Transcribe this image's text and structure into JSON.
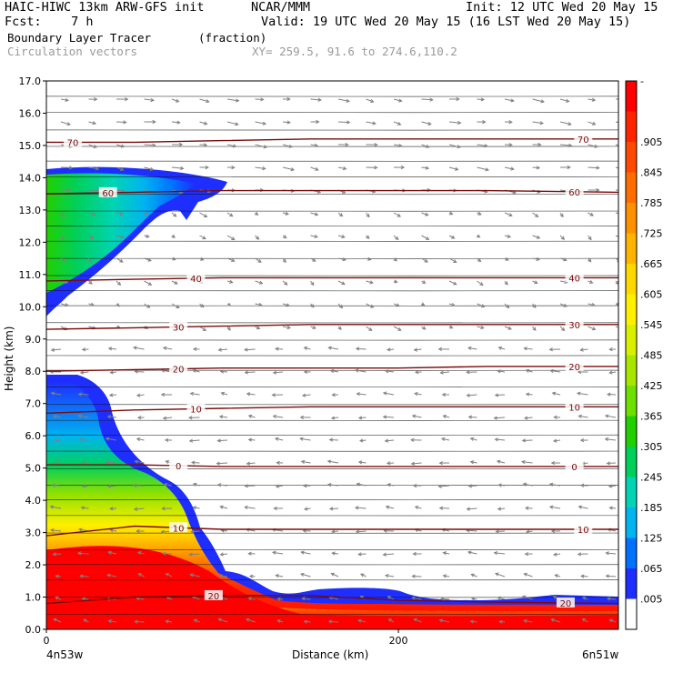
{
  "header": {
    "line1_left": "HAIC-HIWC 13km ARW-GFS init",
    "line1_mid": "NCAR/MMM",
    "line1_right": "Init: 12 UTC Wed 20 May 15",
    "line2_left": "Fcst:    7 h",
    "line2_right": "Valid: 19 UTC Wed 20 May 15 (16 LST Wed 20 May 15)",
    "line3_left": "Boundary Layer Tracer",
    "line3_mid": "(fraction)",
    "line4_left": "Circulation vectors",
    "line4_mid": "XY= 259.5, 91.6 to 274.6,110.2"
  },
  "colors": {
    "contour": "#7a0a0a",
    "vector": "#808080",
    "frame": "#000000"
  },
  "chart_data": {
    "type": "heatmap",
    "title": "Boundary Layer Tracer",
    "units": "(fraction)",
    "xlabel": "Distance (km)",
    "ylabel": "Height (km)",
    "xlim": [
      0,
      325
    ],
    "ylim": [
      0,
      17
    ],
    "x_ticks": [
      "0",
      "200"
    ],
    "x_ticks_values": [
      0,
      200
    ],
    "x_end_labels": {
      "left": "4n53w",
      "right": "6n51w"
    },
    "y_ticks": [
      "0.0",
      "1.0",
      "2.0",
      "3.0",
      "4.0",
      "5.0",
      "6.0",
      "7.0",
      "8.0",
      "9.0",
      "10.0",
      "11.0",
      "12.0",
      "13.0",
      "14.0",
      "15.0",
      "16.0",
      "17.0"
    ],
    "colorbar_labels": [
      "-",
      ".905",
      ".845",
      ".785",
      ".725",
      ".665",
      ".605",
      ".545",
      ".485",
      ".425",
      ".365",
      ".305",
      ".245",
      ".185",
      ".125",
      ".065",
      ".005"
    ],
    "colorbar_colors": [
      "#ff0000",
      "#ff2400",
      "#ff4800",
      "#ff6c00",
      "#ff9000",
      "#ffb400",
      "#ffd800",
      "#fff000",
      "#d8f000",
      "#a8e600",
      "#6ee000",
      "#22d000",
      "#00d05a",
      "#00d4b4",
      "#00b4f0",
      "#0070ff",
      "#1e2eff"
    ],
    "contours": [
      {
        "level": "70",
        "heights": [
          15.1,
          15.1,
          15.15,
          15.2,
          15.2,
          15.2,
          15.2
        ],
        "label_at": [
          15,
          305
        ]
      },
      {
        "level": "60",
        "heights": [
          13.5,
          13.55,
          13.6,
          13.6,
          13.6,
          13.6,
          13.55
        ],
        "label_at": [
          35,
          300
        ]
      },
      {
        "level": "40",
        "heights": [
          10.8,
          10.85,
          10.9,
          10.9,
          10.9,
          10.9,
          10.9
        ],
        "label_at": [
          85,
          300
        ]
      },
      {
        "level": "30",
        "heights": [
          9.3,
          9.35,
          9.4,
          9.45,
          9.45,
          9.45,
          9.45
        ],
        "label_at": [
          75,
          300
        ]
      },
      {
        "level": "20",
        "heights": [
          8.0,
          8.05,
          8.1,
          8.1,
          8.1,
          8.15,
          8.15
        ],
        "label_at": [
          75,
          300
        ]
      },
      {
        "level": "10",
        "heights": [
          6.7,
          6.8,
          6.85,
          6.9,
          6.9,
          6.9,
          6.9
        ],
        "label_at": [
          85,
          300
        ]
      },
      {
        "level": "0",
        "heights": [
          5.1,
          5.1,
          5.05,
          5.05,
          5.05,
          5.05,
          5.05
        ],
        "label_at": [
          75,
          300
        ]
      },
      {
        "level": "10",
        "heights": [
          2.9,
          3.2,
          3.1,
          3.1,
          3.1,
          3.1,
          3.1
        ],
        "label_at": [
          75,
          305
        ]
      },
      {
        "level": "20",
        "heights": [
          0.8,
          1.0,
          1.05,
          1.05,
          0.9,
          0.85,
          0.8
        ],
        "label_at": [
          95,
          295
        ]
      }
    ],
    "contour_x": [
      0,
      50,
      100,
      150,
      200,
      250,
      325
    ]
  }
}
